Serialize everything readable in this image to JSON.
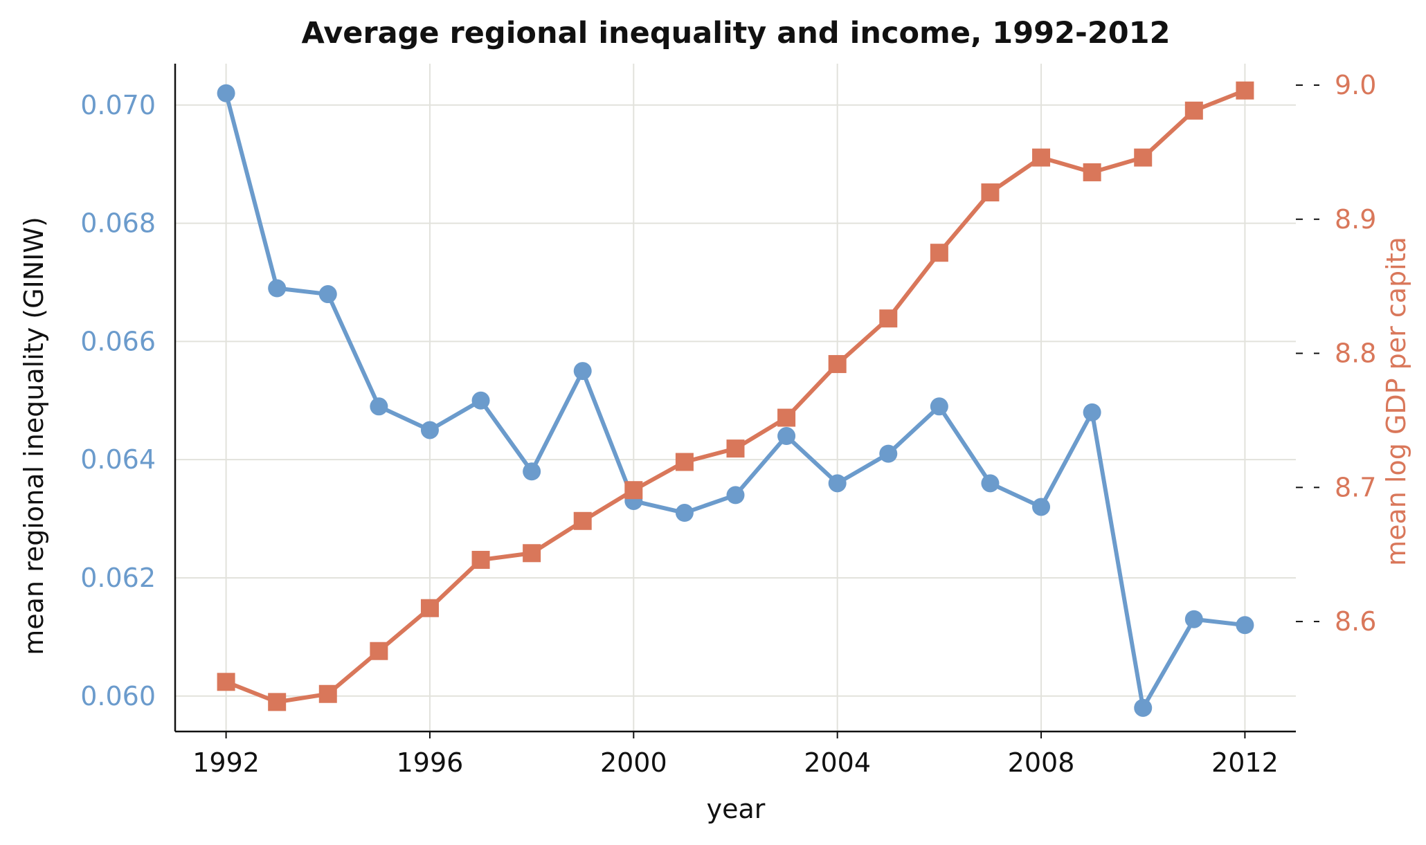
{
  "chart_data": {
    "type": "line",
    "title": "Average regional inequality and income, 1992-2012",
    "xlabel": "year",
    "ylabel_left": "mean regional inequality (GINIW)",
    "ylabel_right": "mean log GDP per capita",
    "x_ticks": [
      1992,
      1996,
      2000,
      2004,
      2008,
      2012
    ],
    "xlim": [
      1991,
      2013
    ],
    "y_left_ticks": [
      "0.060",
      "0.062",
      "0.064",
      "0.066",
      "0.068",
      "0.070"
    ],
    "ylim_left": [
      0.0594,
      0.0707
    ],
    "y_right_ticks": [
      "8.6",
      "8.7",
      "8.8",
      "8.9",
      "9.0"
    ],
    "ylim_right": [
      8.518,
      9.016
    ],
    "grid": true,
    "colors": {
      "left": "#6b9bcc",
      "right": "#d9775a"
    },
    "x": [
      1992,
      1993,
      1994,
      1995,
      1996,
      1997,
      1998,
      1999,
      2000,
      2001,
      2002,
      2003,
      2004,
      2005,
      2006,
      2007,
      2008,
      2009,
      2010,
      2011,
      2012
    ],
    "series": [
      {
        "axis": "left",
        "marker": "circle",
        "values": [
          0.0702,
          0.0669,
          0.0668,
          0.0649,
          0.0645,
          0.065,
          0.0638,
          0.0655,
          0.0633,
          0.0631,
          0.0634,
          0.0644,
          0.0636,
          0.0641,
          0.0649,
          0.0636,
          0.0632,
          0.0648,
          0.0598,
          0.0613,
          0.0612
        ]
      },
      {
        "axis": "right",
        "marker": "square",
        "values": [
          8.555,
          8.54,
          8.546,
          8.578,
          8.61,
          8.646,
          8.651,
          8.675,
          8.698,
          8.719,
          8.729,
          8.752,
          8.792,
          8.826,
          8.875,
          8.92,
          8.946,
          8.935,
          8.946,
          8.981,
          8.996
        ]
      }
    ]
  }
}
